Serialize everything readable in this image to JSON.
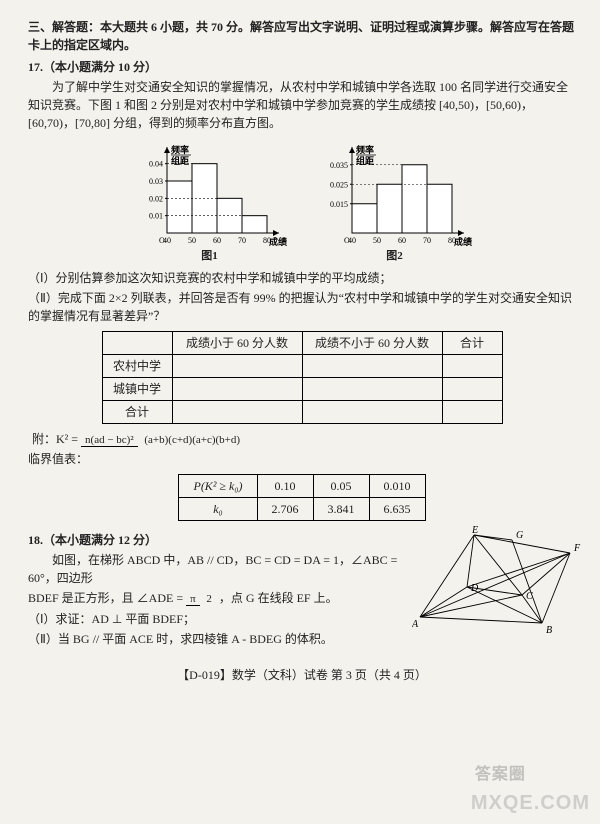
{
  "section3": {
    "heading": "三、解答题：本大题共 6 小题，共 70 分。解答应写出文字说明、证明过程或演算步骤。解答应写在答题卡上的指定区域内。",
    "q17": {
      "num_line": "17.（本小题满分 10 分）",
      "body1": "为了解中学生对交通安全知识的掌握情况，从农村中学和城镇中学各选取 100 名同学进行交通安全知识竞赛。下图 1 和图 2 分别是对农村中学和城镇中学参加竞赛的学生成绩按 [40,50)，[50,60)，[60,70)，[70,80] 分组，得到的频率分布直方图。",
      "fig1": {
        "caption": "图1",
        "ylabel_top": "频率",
        "ylabel_bot": "组距",
        "xlabel": "成绩",
        "y_ticks": [
          "0.01",
          "0.02",
          "0.03",
          "0.04"
        ],
        "x_ticks": [
          "40",
          "50",
          "60",
          "70",
          "80"
        ],
        "bars": [
          0.03,
          0.04,
          0.02,
          0.01
        ],
        "bar_color": "#ffffff",
        "stroke": "#000000",
        "y_max": 0.045
      },
      "fig2": {
        "caption": "图2",
        "ylabel_top": "频率",
        "ylabel_bot": "组距",
        "xlabel": "成绩",
        "y_ticks": [
          "0.015",
          "0.025",
          "0.035"
        ],
        "x_ticks": [
          "40",
          "50",
          "60",
          "70",
          "80"
        ],
        "bars": [
          0.015,
          0.025,
          0.035,
          0.025
        ],
        "bar_color": "#ffffff",
        "stroke": "#000000",
        "y_max": 0.04
      },
      "part1": "（Ⅰ）分别估算参加这次知识竞赛的农村中学和城镇中学的平均成绩；",
      "part2": "（Ⅱ）完成下面 2×2 列联表，并回答是否有 99% 的把握认为“农村中学和城镇中学的学生对交通安全知识的掌握情况有显著差异”？",
      "table1": {
        "headers": [
          "",
          "成绩小于 60 分人数",
          "成绩不小于 60 分人数",
          "合计"
        ],
        "rows": [
          [
            "农村中学",
            "",
            "",
            ""
          ],
          [
            "城镇中学",
            "",
            "",
            ""
          ],
          [
            "合计",
            "",
            "",
            ""
          ]
        ],
        "col_widths": [
          "70px",
          "130px",
          "140px",
          "60px"
        ]
      },
      "formula_label": "附：K² =",
      "formula_num": "n(ad − bc)²",
      "formula_den": "(a+b)(c+d)(a+c)(b+d)",
      "critical_label": "临界值表：",
      "table2": {
        "row1": [
          "P(K² ≥ k₀)",
          "0.10",
          "0.05",
          "0.010"
        ],
        "row2": [
          "k₀",
          "2.706",
          "3.841",
          "6.635"
        ]
      }
    },
    "q18": {
      "num_line": "18.（本小题满分 12 分）",
      "body1": "如图，在梯形 ABCD 中，AB // CD，BC = CD = DA = 1，∠ABC = 60°，四边形",
      "body2_pre": "BDEF 是正方形，且 ∠ADE = ",
      "body2_frac_num": "π",
      "body2_frac_den": "2",
      "body2_post": "，点 G 在线段 EF 上。",
      "part1": "（Ⅰ）求证：AD ⊥ 平面 BDEF；",
      "part2": "（Ⅱ）当 BG // 平面 ACE 时，求四棱锥 A - BDEG 的体积。",
      "labels": {
        "A": "A",
        "B": "B",
        "C": "C",
        "D": "D",
        "E": "E",
        "F": "F",
        "G": "G"
      }
    }
  },
  "footer": "【D-019】数学（文科）试卷  第 3 页（共 4 页）",
  "watermark": {
    "main": "MXQE.COM",
    "side": "答案圈"
  }
}
